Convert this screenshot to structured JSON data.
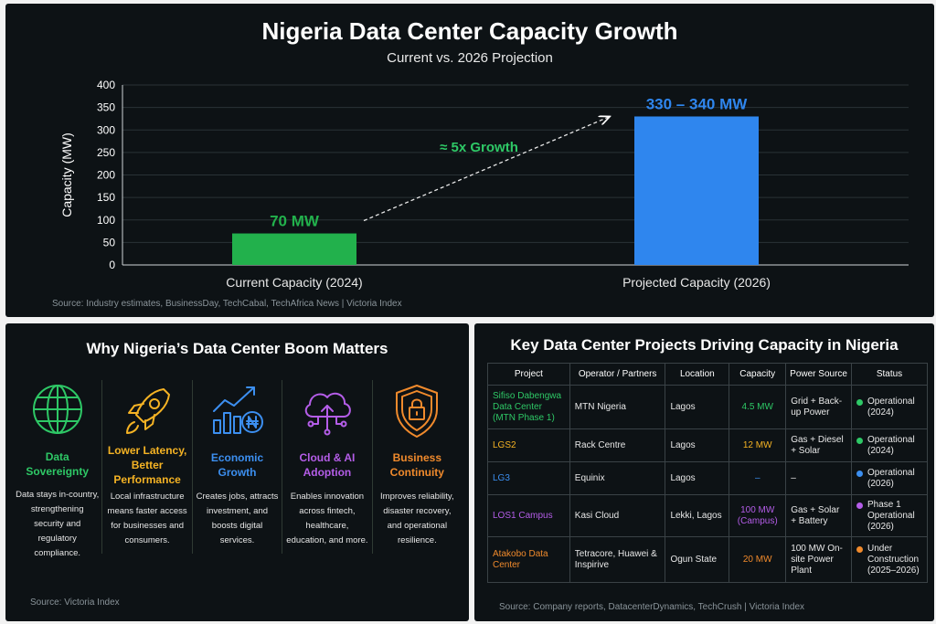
{
  "chart_data": {
    "type": "bar",
    "title": "Nigeria Data Center Capacity Growth",
    "subtitle": "Current vs. 2026 Projection",
    "ylabel": "Capacity (MW)",
    "ylim": [
      0,
      400
    ],
    "yticks": [
      0,
      50,
      100,
      150,
      200,
      250,
      300,
      350,
      400
    ],
    "categories": [
      "Current Capacity (2024)",
      "Projected Capacity (2026)"
    ],
    "values": [
      70,
      330
    ],
    "data_labels": [
      "70 MW",
      "330 – 340 MW"
    ],
    "annotation": "≈ 5x Growth",
    "colors": [
      "#22b14c",
      "#2f86ee"
    ],
    "source": "Source: Industry estimates, BusinessDay, TechCabal, TechAfrica News  |  Victoria Index"
  },
  "why": {
    "title": "Why Nigeria’s Data Center Boom Matters",
    "source": "Source: Victoria Index",
    "items": [
      {
        "icon": "globe-icon",
        "title": "Data Sovereignty",
        "desc": "Data stays in-country, strengthening security and regulatory compliance.",
        "color": "#2ec866"
      },
      {
        "icon": "rocket-icon",
        "title": "Lower Latency, Better Performance",
        "desc": "Local infrastructure means faster access for businesses and consumers.",
        "color": "#f5b324"
      },
      {
        "icon": "growth-chart-icon",
        "title": "Economic Growth",
        "desc": "Creates jobs, attracts investment, and boosts digital services.",
        "color": "#3c8ff0"
      },
      {
        "icon": "cloud-icon",
        "title": "Cloud & AI Adoption",
        "desc": "Enables innovation across fintech, healthcare, education, and more.",
        "color": "#b45de8"
      },
      {
        "icon": "shield-lock-icon",
        "title": "Business Continuity",
        "desc": "Improves reliability, disaster recovery, and operational resilience.",
        "color": "#f08a2c"
      }
    ]
  },
  "projects": {
    "title": "Key Data Center Projects Driving Capacity in Nigeria",
    "source": "Source: Company reports, DatacenterDynamics, TechCrush  |  Victoria Index",
    "headers": [
      "Project",
      "Operator / Partners",
      "Location",
      "Capacity",
      "Power Source",
      "Status"
    ],
    "rows": [
      {
        "project": "Sifiso Dabengwa Data Center (MTN Phase 1)",
        "operator": "MTN Nigeria",
        "location": "Lagos",
        "capacity": "4.5 MW",
        "power": "Grid + Back-up Power",
        "status": "Operational (2024)",
        "color": "#2ec866",
        "status_color": "#2ec866"
      },
      {
        "project": "LGS2",
        "operator": "Rack Centre",
        "location": "Lagos",
        "capacity": "12 MW",
        "power": "Gas + Diesel + Solar",
        "status": "Operational (2024)",
        "color": "#f5b324",
        "status_color": "#2ec866"
      },
      {
        "project": "LG3",
        "operator": "Equinix",
        "location": "Lagos",
        "capacity": "–",
        "power": "–",
        "status": "Operational (2026)",
        "color": "#3c8ff0",
        "status_color": "#3c8ff0"
      },
      {
        "project": "LOS1 Campus",
        "operator": "Kasi Cloud",
        "location": "Lekki, Lagos",
        "capacity": "100 MW (Campus)",
        "power": "Gas + Solar + Battery",
        "status": "Phase 1 Operational (2026)",
        "color": "#b45de8",
        "status_color": "#b45de8"
      },
      {
        "project": "Atakobo Data Center",
        "operator": "Tetracore, Huawei & Inspirive",
        "location": "Ogun State",
        "capacity": "20 MW",
        "power": "100 MW On-site Power Plant",
        "status": "Under Construction (2025–2026)",
        "color": "#f08a2c",
        "status_color": "#f08a2c"
      }
    ]
  }
}
